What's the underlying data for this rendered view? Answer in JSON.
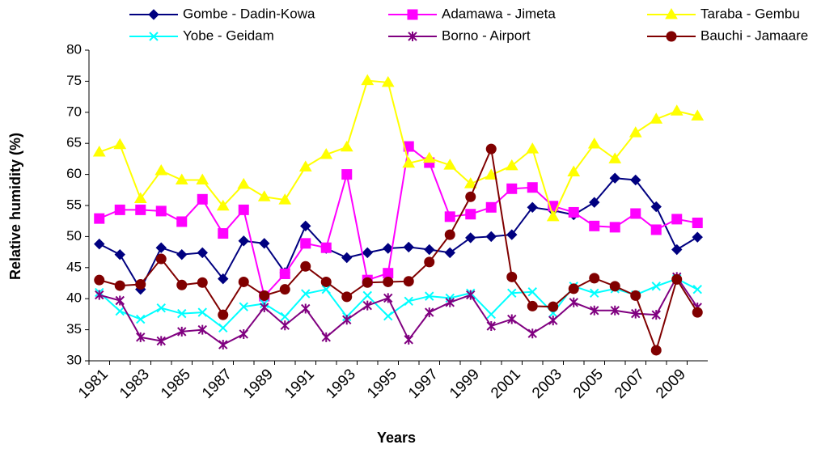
{
  "chart_data": {
    "type": "line",
    "x_label": "Years",
    "y_label": "Relative humidity (%)",
    "categories": [
      "1981",
      null,
      "1983",
      null,
      "1985",
      null,
      "1987",
      null,
      "1989",
      null,
      "1991",
      null,
      "1993",
      null,
      "1995",
      null,
      "1997",
      null,
      "1999",
      null,
      "2001",
      null,
      "2003",
      null,
      "2005",
      null,
      "2007",
      null,
      "2009",
      null
    ],
    "ylim": [
      30,
      80
    ],
    "yticks": [
      30,
      35,
      40,
      45,
      50,
      55,
      60,
      65,
      70,
      75,
      80
    ],
    "series": [
      {
        "name": "Gombe - Dadin-Kowa",
        "color": "#000080",
        "marker": "diamond",
        "values": [
          48.8,
          47.1,
          41.5,
          48.2,
          47.1,
          47.4,
          43.2,
          49.3,
          48.9,
          44.2,
          51.7,
          48.1,
          46.6,
          47.4,
          48.1,
          48.3,
          47.9,
          47.4,
          49.8,
          50.0,
          50.3,
          54.7,
          54.2,
          53.5,
          55.5,
          59.4,
          59.1,
          54.8,
          47.9,
          49.9
        ]
      },
      {
        "name": "Adamawa - Jimeta",
        "color": "#ff00ff",
        "marker": "square",
        "values": [
          52.9,
          54.3,
          54.3,
          54.1,
          52.4,
          56.0,
          50.5,
          54.3,
          40.4,
          44.0,
          48.9,
          48.2,
          60.0,
          43.0,
          44.1,
          64.5,
          61.9,
          53.2,
          53.6,
          54.7,
          57.7,
          57.9,
          54.9,
          53.9,
          51.7,
          51.5,
          53.7,
          51.1,
          52.8,
          52.2
        ]
      },
      {
        "name": "Taraba - Gembu",
        "color": "#ffff00",
        "marker": "triangle",
        "values": [
          63.6,
          64.8,
          56.1,
          60.6,
          59.1,
          59.1,
          54.9,
          58.4,
          56.4,
          55.9,
          61.2,
          63.2,
          64.4,
          75.1,
          74.8,
          61.8,
          62.6,
          61.5,
          58.5,
          59.9,
          61.4,
          64.1,
          53.2,
          60.4,
          64.9,
          62.5,
          66.7,
          68.9,
          70.2,
          69.4
        ]
      },
      {
        "name": "Yobe - Geidam",
        "color": "#00ffff",
        "marker": "x",
        "values": [
          41.0,
          38.0,
          36.7,
          38.5,
          37.6,
          37.8,
          35.3,
          38.7,
          39.2,
          37.1,
          40.8,
          41.5,
          37.1,
          40.5,
          37.2,
          39.6,
          40.4,
          40.1,
          40.9,
          37.5,
          40.9,
          41.1,
          37.7,
          42.0,
          40.9,
          41.6,
          40.6,
          42.0,
          43.2,
          41.5
        ]
      },
      {
        "name": "Borno - Airport",
        "color": "#800080",
        "marker": "star",
        "values": [
          40.6,
          39.7,
          33.8,
          33.2,
          34.7,
          35.0,
          32.6,
          34.3,
          38.6,
          35.7,
          38.4,
          33.8,
          36.6,
          38.9,
          40.1,
          33.4,
          37.8,
          39.4,
          40.6,
          35.6,
          36.7,
          34.4,
          36.5,
          39.4,
          38.1,
          38.1,
          37.6,
          37.4,
          43.5,
          38.6
        ]
      },
      {
        "name": "Bauchi - Jamaare",
        "color": "#800000",
        "marker": "circle",
        "values": [
          43.0,
          42.1,
          42.3,
          46.4,
          42.2,
          42.6,
          37.4,
          42.7,
          40.5,
          41.5,
          45.2,
          42.7,
          40.3,
          42.6,
          42.7,
          42.8,
          45.9,
          50.3,
          56.4,
          64.1,
          43.5,
          38.8,
          38.7,
          41.6,
          43.3,
          42.0,
          40.5,
          31.7,
          43.1,
          37.8
        ]
      }
    ]
  }
}
